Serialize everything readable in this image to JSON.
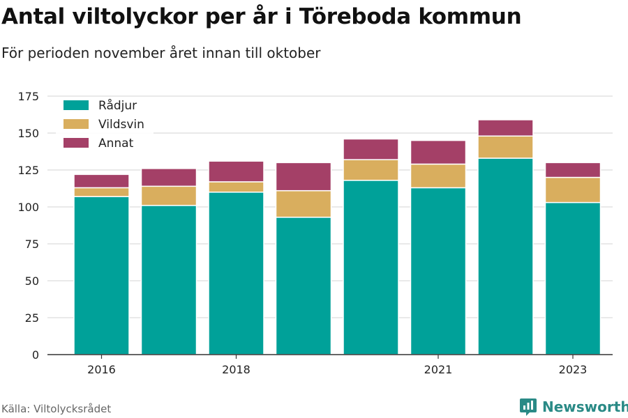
{
  "title": "Antal viltolyckor per år i Töreboda kommun",
  "subtitle": "För perioden november året innan till oktober",
  "source": "Källa: Viltolycksrådet",
  "brand": "Newsworthy",
  "colors": {
    "Rådjur": "#00a199",
    "Vildsvin": "#d9ae5e",
    "Annat": "#a44067",
    "brand": "#2a8a86"
  },
  "chart_data": {
    "type": "bar",
    "stacked": true,
    "categories": [
      "2016",
      "2017",
      "2018",
      "2019",
      "2020",
      "2021",
      "2022",
      "2023"
    ],
    "x_tick_labels": [
      "2016",
      "2018",
      "2021",
      "2023"
    ],
    "series": [
      {
        "name": "Rådjur",
        "values": [
          107,
          101,
          110,
          93,
          118,
          113,
          133,
          103
        ]
      },
      {
        "name": "Vildsvin",
        "values": [
          6,
          13,
          7,
          18,
          14,
          16,
          15,
          17
        ]
      },
      {
        "name": "Annat",
        "values": [
          9,
          12,
          14,
          19,
          14,
          16,
          11,
          10
        ]
      }
    ],
    "ylim": [
      0,
      175
    ],
    "y_ticks": [
      0,
      25,
      50,
      75,
      100,
      125,
      150,
      175
    ],
    "grid": true,
    "legend_position": "top-left"
  }
}
